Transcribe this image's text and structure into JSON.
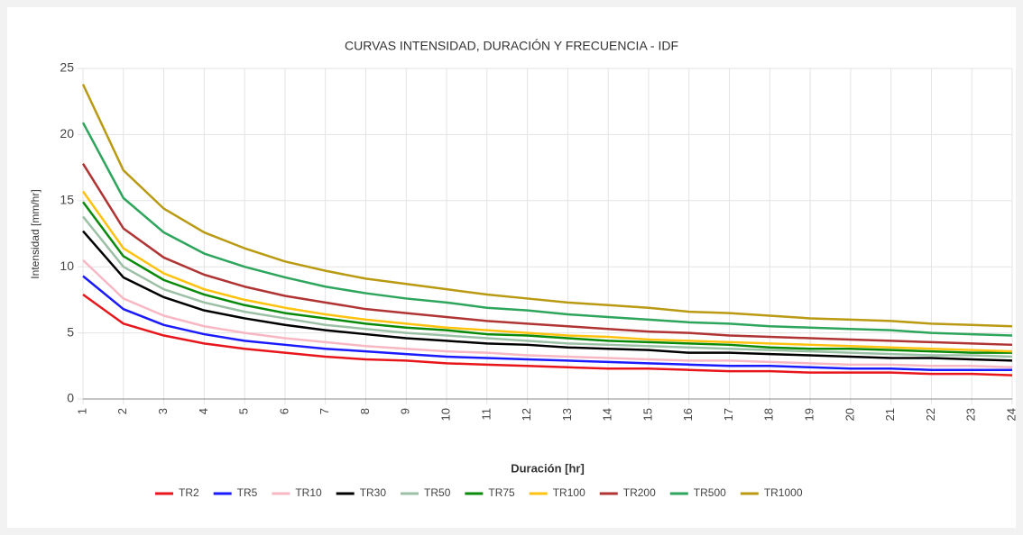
{
  "chart_data": {
    "type": "line",
    "title": "CURVAS INTENSIDAD, DURACIÓN Y FRECUENCIA - IDF",
    "x_label": "Duración [hr]",
    "y_label": "Intensidad [mm/hr]",
    "x": [
      1,
      2,
      3,
      4,
      5,
      6,
      7,
      8,
      9,
      10,
      11,
      12,
      13,
      14,
      15,
      16,
      17,
      18,
      19,
      20,
      21,
      22,
      23,
      24
    ],
    "xlim": [
      1,
      24
    ],
    "xticks": [
      1,
      2,
      3,
      4,
      5,
      6,
      7,
      8,
      9,
      10,
      11,
      12,
      13,
      14,
      15,
      16,
      17,
      18,
      19,
      20,
      21,
      22,
      23,
      24
    ],
    "ylim": [
      0,
      25
    ],
    "yticks": [
      0,
      5,
      10,
      15,
      20,
      25
    ],
    "grid": true,
    "legend": "bottom",
    "series": [
      {
        "name": "TR2",
        "color": "#e8161b",
        "values": [
          7.9,
          5.7,
          4.8,
          4.2,
          3.8,
          3.5,
          3.2,
          3.0,
          2.9,
          2.7,
          2.6,
          2.5,
          2.4,
          2.3,
          2.3,
          2.2,
          2.1,
          2.1,
          2.0,
          2.0,
          2.0,
          1.9,
          1.9,
          1.8
        ]
      },
      {
        "name": "TR5",
        "color": "#1a1aff",
        "values": [
          9.3,
          6.8,
          5.6,
          4.9,
          4.4,
          4.1,
          3.8,
          3.6,
          3.4,
          3.2,
          3.1,
          3.0,
          2.9,
          2.8,
          2.7,
          2.6,
          2.5,
          2.5,
          2.4,
          2.3,
          2.3,
          2.2,
          2.2,
          2.2
        ]
      },
      {
        "name": "TR10",
        "color": "#f7b8c4",
        "values": [
          10.5,
          7.6,
          6.3,
          5.5,
          5.0,
          4.6,
          4.3,
          4.0,
          3.8,
          3.6,
          3.5,
          3.3,
          3.2,
          3.1,
          3.0,
          2.9,
          2.9,
          2.8,
          2.7,
          2.6,
          2.6,
          2.5,
          2.5,
          2.4
        ]
      },
      {
        "name": "TR30",
        "color": "#000000",
        "values": [
          12.7,
          9.2,
          7.7,
          6.7,
          6.1,
          5.6,
          5.2,
          4.9,
          4.6,
          4.4,
          4.2,
          4.1,
          3.9,
          3.8,
          3.7,
          3.5,
          3.5,
          3.4,
          3.3,
          3.2,
          3.1,
          3.1,
          3.0,
          2.9
        ]
      },
      {
        "name": "TR50",
        "color": "#9cc0a6",
        "values": [
          13.8,
          10.0,
          8.3,
          7.3,
          6.6,
          6.1,
          5.6,
          5.3,
          5.0,
          4.8,
          4.6,
          4.4,
          4.2,
          4.1,
          4.0,
          3.9,
          3.8,
          3.7,
          3.6,
          3.5,
          3.4,
          3.3,
          3.3,
          3.2
        ]
      },
      {
        "name": "TR75",
        "color": "#0a8a0a",
        "values": [
          14.9,
          10.8,
          9.0,
          7.9,
          7.1,
          6.5,
          6.1,
          5.7,
          5.4,
          5.2,
          4.9,
          4.8,
          4.6,
          4.4,
          4.3,
          4.2,
          4.1,
          3.9,
          3.8,
          3.8,
          3.7,
          3.6,
          3.5,
          3.5
        ]
      },
      {
        "name": "TR100",
        "color": "#ffc20e",
        "values": [
          15.7,
          11.4,
          9.5,
          8.3,
          7.5,
          6.9,
          6.4,
          6.0,
          5.7,
          5.4,
          5.2,
          5.0,
          4.8,
          4.7,
          4.5,
          4.4,
          4.3,
          4.2,
          4.1,
          4.0,
          3.9,
          3.8,
          3.7,
          3.6
        ]
      },
      {
        "name": "TR200",
        "color": "#b03434",
        "values": [
          17.8,
          12.9,
          10.7,
          9.4,
          8.5,
          7.8,
          7.3,
          6.8,
          6.5,
          6.2,
          5.9,
          5.7,
          5.5,
          5.3,
          5.1,
          5.0,
          4.8,
          4.7,
          4.6,
          4.5,
          4.4,
          4.3,
          4.2,
          4.1
        ]
      },
      {
        "name": "TR500",
        "color": "#2ea55c",
        "values": [
          20.9,
          15.2,
          12.6,
          11.0,
          10.0,
          9.2,
          8.5,
          8.0,
          7.6,
          7.3,
          6.9,
          6.7,
          6.4,
          6.2,
          6.0,
          5.8,
          5.7,
          5.5,
          5.4,
          5.3,
          5.2,
          5.0,
          4.9,
          4.8
        ]
      },
      {
        "name": "TR1000",
        "color": "#b99a12",
        "values": [
          23.8,
          17.3,
          14.4,
          12.6,
          11.4,
          10.4,
          9.7,
          9.1,
          8.7,
          8.3,
          7.9,
          7.6,
          7.3,
          7.1,
          6.9,
          6.6,
          6.5,
          6.3,
          6.1,
          6.0,
          5.9,
          5.7,
          5.6,
          5.5
        ]
      }
    ]
  }
}
